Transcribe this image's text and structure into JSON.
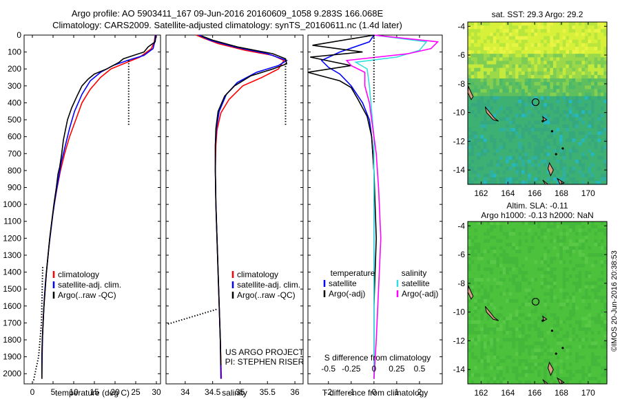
{
  "header": {
    "line1": "Argo profile: AO 5903411_167 09-Jun-2016 20160609_1058 9.283S 166.068E",
    "line2": "Climatology: CARS2009. Satellite-adjusted climatology: synTS_20160611.nc (1.4d later)"
  },
  "colors": {
    "climatology": "#ff0000",
    "satellite": "#0000ff",
    "argo": "#000000",
    "cyan": "#33dddd",
    "magenta": "#ff00ff",
    "land": "#d2a27f"
  },
  "chart_data": [
    {
      "id": "temperature",
      "type": "line",
      "xlabel": "temperature (deg C)",
      "ylabel": "",
      "xlim": [
        -2,
        31
      ],
      "ylim": [
        2060,
        0
      ],
      "xticks": [
        0,
        5,
        10,
        15,
        20,
        25,
        30
      ],
      "yticks": [
        0,
        100,
        200,
        300,
        400,
        500,
        600,
        700,
        800,
        900,
        1000,
        1100,
        1200,
        1300,
        1400,
        1500,
        1600,
        1700,
        1800,
        1900,
        2000
      ],
      "legend": {
        "position": "lower-left",
        "entries": [
          "climatology",
          "satellite-adj. clim.",
          "Argo(..raw -QC)"
        ]
      },
      "series": [
        {
          "name": "climatology",
          "color": "red",
          "points": [
            [
              29.7,
              0
            ],
            [
              29.5,
              40
            ],
            [
              28.8,
              80
            ],
            [
              26,
              130
            ],
            [
              22,
              170
            ],
            [
              19,
              200
            ],
            [
              16.5,
              250
            ],
            [
              14,
              320
            ],
            [
              12,
              400
            ],
            [
              10.5,
              500
            ],
            [
              9,
              600
            ],
            [
              7.8,
              700
            ],
            [
              6.8,
              800
            ],
            [
              6,
              900
            ],
            [
              5.3,
              1000
            ],
            [
              4.7,
              1100
            ],
            [
              4.2,
              1200
            ],
            [
              3.8,
              1300
            ],
            [
              3.4,
              1400
            ],
            [
              3.1,
              1500
            ],
            [
              2.8,
              1600
            ],
            [
              2.6,
              1700
            ],
            [
              2.4,
              1800
            ],
            [
              2.3,
              1900
            ],
            [
              2.3,
              2030
            ]
          ]
        },
        {
          "name": "satellite-adj. clim.",
          "color": "blue",
          "points": [
            [
              29.8,
              0
            ],
            [
              29.6,
              40
            ],
            [
              29.2,
              80
            ],
            [
              27,
              120
            ],
            [
              23,
              150
            ],
            [
              19.5,
              180
            ],
            [
              16.5,
              220
            ],
            [
              14,
              270
            ],
            [
              12,
              350
            ],
            [
              10.2,
              450
            ],
            [
              9,
              550
            ],
            [
              8,
              650
            ],
            [
              7,
              750
            ],
            [
              6.3,
              850
            ],
            [
              5.6,
              950
            ],
            [
              5,
              1050
            ],
            [
              4.5,
              1150
            ],
            [
              4,
              1250
            ],
            [
              3.6,
              1350
            ],
            [
              3.2,
              1450
            ],
            [
              2.9,
              1550
            ],
            [
              2.7,
              1650
            ],
            [
              2.5,
              1750
            ],
            [
              2.4,
              1850
            ],
            [
              2.3,
              2000
            ]
          ]
        },
        {
          "name": "Argo(..raw -QC)",
          "color": "black",
          "points": [
            [
              29.9,
              5
            ],
            [
              29.7,
              40
            ],
            [
              28,
              70
            ],
            [
              27,
              100
            ],
            [
              24.5,
              120
            ],
            [
              22,
              140
            ],
            [
              21,
              160
            ],
            [
              19.5,
              180
            ],
            [
              18,
              200
            ],
            [
              15,
              230
            ],
            [
              13.5,
              260
            ],
            [
              12,
              300
            ],
            [
              10.8,
              360
            ],
            [
              9.5,
              430
            ],
            [
              8.5,
              500
            ],
            [
              8,
              560
            ],
            [
              7.5,
              620
            ],
            [
              7.1,
              700
            ],
            [
              6.6,
              780
            ],
            [
              6.2,
              820
            ],
            [
              5.8,
              900
            ],
            [
              5.2,
              1000
            ],
            [
              4.7,
              1100
            ],
            [
              4.2,
              1200
            ],
            [
              3.8,
              1300
            ],
            [
              3.4,
              1400
            ],
            [
              3.1,
              1500
            ],
            [
              2.8,
              1600
            ],
            [
              2.6,
              1700
            ],
            [
              2.4,
              1800
            ],
            [
              2.3,
              1900
            ],
            [
              2.3,
              2030
            ]
          ]
        },
        {
          "name": "",
          "color": "black",
          "dotted": true,
          "points": [
            [
              23.3,
              150
            ],
            [
              23.3,
              530
            ]
          ]
        },
        {
          "name": "",
          "color": "black",
          "dotted": true,
          "points": [
            [
              2.5,
              1370
            ],
            [
              2.2,
              1700
            ],
            [
              1.5,
              1900
            ],
            [
              0.2,
              2050
            ]
          ]
        }
      ]
    },
    {
      "id": "salinity",
      "type": "line",
      "xlabel": "salinity",
      "ylabel": "",
      "xlim": [
        33.65,
        36.15
      ],
      "ylim": [
        2060,
        0
      ],
      "xticks": [
        34,
        34.5,
        35,
        35.5,
        36
      ],
      "legend": {
        "position": "lower-right",
        "entries": [
          "climatology",
          "satellite-adj. clim.",
          "Argo(..raw -QC)"
        ]
      },
      "annotations": [
        "US ARGO PROJECT",
        "PI: STEPHEN RISER"
      ],
      "series": [
        {
          "name": "climatology",
          "color": "red",
          "points": [
            [
              34.2,
              0
            ],
            [
              34.35,
              20
            ],
            [
              34.6,
              50
            ],
            [
              35.1,
              90
            ],
            [
              35.6,
              120
            ],
            [
              35.8,
              150
            ],
            [
              35.7,
              200
            ],
            [
              35.4,
              250
            ],
            [
              35.05,
              300
            ],
            [
              34.8,
              380
            ],
            [
              34.65,
              460
            ],
            [
              34.58,
              560
            ],
            [
              34.56,
              650
            ],
            [
              34.55,
              800
            ],
            [
              34.56,
              1000
            ],
            [
              34.58,
              1200
            ],
            [
              34.6,
              1400
            ],
            [
              34.62,
              1600
            ],
            [
              34.64,
              1800
            ],
            [
              34.66,
              2030
            ]
          ]
        },
        {
          "name": "satellite-adj. clim.",
          "color": "blue",
          "points": [
            [
              34.25,
              0
            ],
            [
              34.45,
              30
            ],
            [
              34.9,
              70
            ],
            [
              35.5,
              110
            ],
            [
              35.85,
              150
            ],
            [
              35.7,
              180
            ],
            [
              35.3,
              220
            ],
            [
              34.95,
              280
            ],
            [
              34.75,
              350
            ],
            [
              34.62,
              450
            ],
            [
              34.57,
              550
            ],
            [
              34.55,
              650
            ],
            [
              34.55,
              800
            ],
            [
              34.56,
              1000
            ],
            [
              34.58,
              1200
            ],
            [
              34.6,
              1400
            ],
            [
              34.62,
              1600
            ],
            [
              34.64,
              1800
            ],
            [
              34.65,
              2030
            ]
          ]
        },
        {
          "name": "Argo(..raw -QC)",
          "color": "black",
          "points": [
            [
              34.3,
              5
            ],
            [
              34.5,
              30
            ],
            [
              34.95,
              70
            ],
            [
              35.6,
              110
            ],
            [
              35.83,
              140
            ],
            [
              35.85,
              170
            ],
            [
              35.6,
              200
            ],
            [
              35.2,
              240
            ],
            [
              34.9,
              300
            ],
            [
              34.72,
              360
            ],
            [
              34.6,
              450
            ],
            [
              34.56,
              550
            ],
            [
              34.55,
              650
            ],
            [
              34.55,
              800
            ],
            [
              34.56,
              1000
            ],
            [
              34.58,
              1200
            ],
            [
              34.6,
              1400
            ],
            [
              34.62,
              1600
            ],
            [
              34.64,
              1800
            ],
            [
              34.65,
              1950
            ]
          ]
        },
        {
          "name": "",
          "color": "black",
          "dotted": true,
          "points": [
            [
              35.83,
              150
            ],
            [
              35.83,
              530
            ]
          ]
        },
        {
          "name": "",
          "color": "black",
          "dotted": true,
          "points": [
            [
              34.57,
              1620
            ],
            [
              33.65,
              1710
            ]
          ]
        }
      ]
    },
    {
      "id": "difference",
      "type": "line",
      "xlabel": "T difference from climatology",
      "top_xlabel": "S difference from climatology",
      "xlim": [
        -2.9,
        3.0
      ],
      "ylim": [
        2060,
        0
      ],
      "xticks": [
        -2,
        -1,
        0,
        1,
        2
      ],
      "s_ticks": [
        "-0.5",
        "-0.25",
        "0",
        "0.25",
        "0.5"
      ],
      "legend": {
        "position": "lower",
        "groups": [
          {
            "title": "temperature",
            "entries": [
              "satellite",
              "Argo(-adj)"
            ]
          },
          {
            "title": "salinity",
            "entries": [
              "satellite",
              "Argo(-adj)"
            ]
          }
        ]
      },
      "series": [
        {
          "name": "temperature satellite",
          "color": "blue",
          "points": [
            [
              0,
              0
            ],
            [
              -0.2,
              40
            ],
            [
              -1.5,
              100
            ],
            [
              -2.3,
              150
            ],
            [
              -2,
              190
            ],
            [
              -1.5,
              230
            ],
            [
              -1,
              300
            ],
            [
              -0.5,
              400
            ],
            [
              -0.2,
              500
            ],
            [
              -0.1,
              600
            ],
            [
              0,
              800
            ],
            [
              0,
              2030
            ]
          ]
        },
        {
          "name": "temperature Argo(-adj)",
          "color": "black",
          "points": [
            [
              0,
              0
            ],
            [
              -2.7,
              60
            ],
            [
              -0.5,
              100
            ],
            [
              -2.8,
              130
            ],
            [
              -1,
              180
            ],
            [
              -2.9,
              220
            ],
            [
              -1.5,
              270
            ],
            [
              -1,
              310
            ],
            [
              -0.7,
              380
            ],
            [
              -0.3,
              480
            ],
            [
              -0.1,
              600
            ],
            [
              0,
              800
            ],
            [
              0.1,
              1200
            ],
            [
              0,
              1600
            ],
            [
              0,
              2030
            ]
          ]
        },
        {
          "name": "salinity satellite",
          "color": "cyan",
          "points": [
            [
              0,
              0
            ],
            [
              2.3,
              40
            ],
            [
              2.0,
              90
            ],
            [
              1.0,
              130
            ],
            [
              -0.8,
              160
            ],
            [
              -0.3,
              200
            ],
            [
              -0.2,
              300
            ],
            [
              -0.1,
              450
            ],
            [
              0,
              600
            ],
            [
              0,
              2030
            ]
          ]
        },
        {
          "name": "salinity Argo(-adj)",
          "color": "magenta",
          "points": [
            [
              0,
              0
            ],
            [
              2.8,
              40
            ],
            [
              2.5,
              80
            ],
            [
              1.5,
              110
            ],
            [
              -1.2,
              150
            ],
            [
              -1.0,
              180
            ],
            [
              -0.4,
              220
            ],
            [
              -0.4,
              300
            ],
            [
              -0.2,
              400
            ],
            [
              -0.1,
              500
            ],
            [
              0.1,
              700
            ],
            [
              0.2,
              900
            ],
            [
              0.3,
              1200
            ],
            [
              0.2,
              1500
            ],
            [
              0.1,
              1800
            ],
            [
              0,
              2030
            ]
          ]
        },
        {
          "name": "",
          "color": "black",
          "dotted": true,
          "points": [
            [
              0,
              0
            ],
            [
              0,
              400
            ]
          ]
        }
      ]
    },
    {
      "id": "sst-map",
      "type": "heatmap",
      "title": "sat. SST: 29.3 Argo: 29.2",
      "xlim": [
        161,
        171.4
      ],
      "ylim": [
        -15,
        -3.7
      ],
      "xticks": [
        162,
        164,
        166,
        168,
        170
      ],
      "yticks": [
        -4,
        -6,
        -8,
        -10,
        -12,
        -14
      ],
      "argo_position": [
        166.07,
        -9.28
      ]
    },
    {
      "id": "sla-map",
      "type": "heatmap",
      "title_line1": "Altim. SLA: -0.11",
      "title_line2": "Argo h1000: -0.13 h2000: NaN",
      "xlim": [
        161,
        171.4
      ],
      "ylim": [
        -15,
        -3.7
      ],
      "xticks": [
        162,
        164,
        166,
        168,
        170
      ],
      "yticks": [
        -4,
        -6,
        -8,
        -10,
        -12,
        -14
      ],
      "argo_position": [
        166.07,
        -9.28
      ]
    }
  ],
  "stamp": "©IMOS 20-Jun-2016 20:38:53"
}
